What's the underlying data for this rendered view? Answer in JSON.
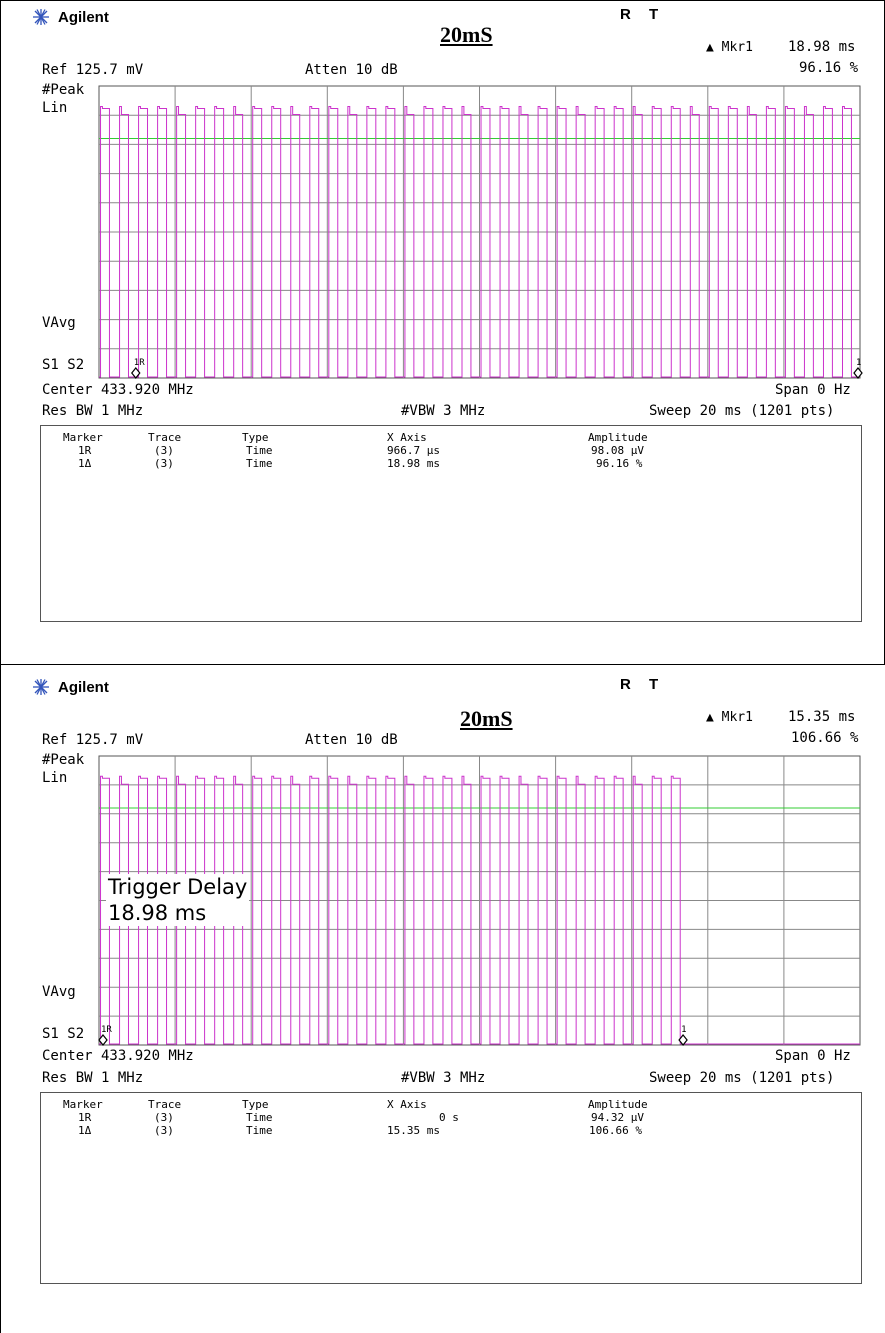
{
  "panels": [
    {
      "logo": "Agilent",
      "status_r": "R",
      "status_t": "T",
      "heading": "20mS",
      "marker_readout": {
        "label": "▲ Mkr1",
        "time": "18.98 ms",
        "ratio": "96.16 %"
      },
      "ref": "Ref 125.7 mV",
      "atten": "Atten 10 dB",
      "detector": "#Peak",
      "scale": "Lin",
      "vavg": "VAvg",
      "s1s2": "S1  S2",
      "center": "Center 433.920 MHz",
      "span": "Span 0 Hz",
      "res_bw": "Res BW 1 MHz",
      "vbw": "#VBW 3 MHz",
      "sweep": "Sweep 20 ms (1201 pts)",
      "overlay": null,
      "table": {
        "headers": [
          "Marker",
          "Trace",
          "Type",
          "X Axis",
          "Amplitude"
        ],
        "rows": [
          [
            "1R",
            "(3)",
            "Time",
            "966.7 µs",
            "98.08 µV"
          ],
          [
            "1Δ",
            "(3)",
            "Time",
            "18.98 ms",
            "96.16 %"
          ]
        ]
      },
      "markers": [
        {
          "id": "1R",
          "label": "1R",
          "x_ms": 0.9667
        },
        {
          "id": "1d",
          "label": "1",
          "x_ms": 19.95
        }
      ]
    },
    {
      "logo": "Agilent",
      "status_r": "R",
      "status_t": "T",
      "heading": "20mS",
      "marker_readout": {
        "label": "▲ Mkr1",
        "time": "15.35 ms",
        "ratio": "106.66 %"
      },
      "ref": "Ref 125.7 mV",
      "atten": "Atten 10 dB",
      "detector": "#Peak",
      "scale": "Lin",
      "vavg": "VAvg",
      "s1s2": "S1  S2",
      "center": "Center 433.920 MHz",
      "span": "Span 0 Hz",
      "res_bw": "Res BW 1 MHz",
      "vbw": "#VBW 3 MHz",
      "sweep": "Sweep 20 ms (1201 pts)",
      "overlay": {
        "line1": "Trigger Delay",
        "line2": "18.98 ms"
      },
      "table": {
        "headers": [
          "Marker",
          "Trace",
          "Type",
          "X Axis",
          "Amplitude"
        ],
        "rows": [
          [
            "1R",
            "(3)",
            "Time",
            "0 s",
            "94.32 µV"
          ],
          [
            "1Δ",
            "(3)",
            "Time",
            "15.35 ms",
            "106.66 %"
          ]
        ]
      },
      "markers": [
        {
          "id": "1R",
          "label": "1R",
          "x_ms": 0.0
        },
        {
          "id": "1d",
          "label": "1",
          "x_ms": 15.35
        }
      ]
    }
  ],
  "chart_data": [
    {
      "type": "line",
      "x_unit": "ms",
      "xlim": [
        0,
        20
      ],
      "ylim": [
        0,
        1
      ],
      "y_unit": "fraction of reference level (125.7 mV)",
      "grid": true,
      "threshold_level": 0.82,
      "threshold_color": "#33cc33",
      "trace_color": "#cc33cc",
      "pulse_train": {
        "start_ms": 0.0,
        "end_ms": 20.0,
        "period_ms": 0.5,
        "high_level": 0.93
      }
    },
    {
      "type": "line",
      "x_unit": "ms",
      "xlim": [
        0,
        20
      ],
      "ylim": [
        0,
        1
      ],
      "y_unit": "fraction of reference level (125.7 mV)",
      "grid": true,
      "threshold_level": 0.82,
      "threshold_color": "#33cc33",
      "trace_color": "#cc33cc",
      "pulse_train": {
        "start_ms": 0.0,
        "end_ms": 15.35,
        "period_ms": 0.5,
        "high_level": 0.93
      }
    }
  ]
}
